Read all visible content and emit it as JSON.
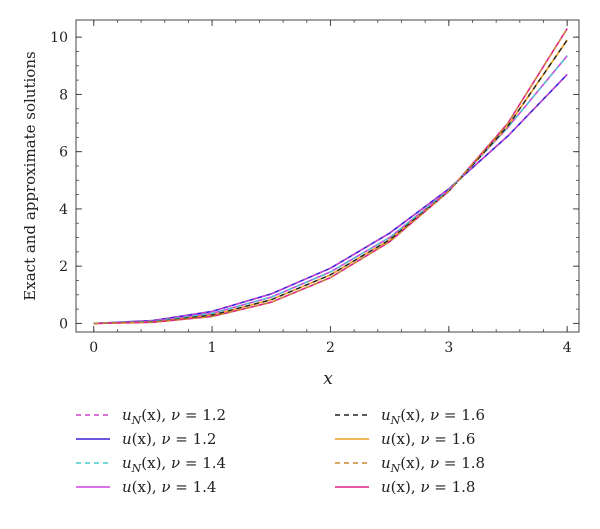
{
  "chart_data": {
    "type": "line",
    "xlabel": "x",
    "ylabel": "Exact and approximate solutions",
    "xlim": [
      -0.15,
      4.1
    ],
    "ylim": [
      -0.3,
      10.6
    ],
    "x_ticks": [
      {
        "value": 0,
        "label": "0"
      },
      {
        "value": 1,
        "label": "1"
      },
      {
        "value": 2,
        "label": "2"
      },
      {
        "value": 3,
        "label": "3"
      },
      {
        "value": 4,
        "label": "4"
      }
    ],
    "y_ticks": [
      {
        "value": 0,
        "label": "0"
      },
      {
        "value": 2,
        "label": "2"
      },
      {
        "value": 4,
        "label": "4"
      },
      {
        "value": 6,
        "label": "6"
      },
      {
        "value": 8,
        "label": "8"
      },
      {
        "value": 10,
        "label": "10"
      }
    ],
    "x": [
      0,
      0.5,
      1,
      1.5,
      2,
      2.5,
      3,
      3.5,
      4
    ],
    "series": [
      {
        "name": "u_N(x), ν = 1.2",
        "color": "#cc44cc",
        "dash": true,
        "values": [
          0,
          0.1,
          0.42,
          1.03,
          1.93,
          3.15,
          4.7,
          6.55,
          8.7
        ]
      },
      {
        "name": "u(x), ν = 1.2",
        "color": "#3b1fd6",
        "dash": false,
        "values": [
          0,
          0.1,
          0.42,
          1.03,
          1.93,
          3.15,
          4.7,
          6.55,
          8.7
        ]
      },
      {
        "name": "u_N(x), ν = 1.4",
        "color": "#44cccc",
        "dash": true,
        "values": [
          0,
          0.07,
          0.35,
          0.92,
          1.8,
          3.0,
          4.65,
          6.85,
          9.35
        ]
      },
      {
        "name": "u(x), ν = 1.4",
        "color": "#cc44dd",
        "dash": false,
        "values": [
          0,
          0.07,
          0.35,
          0.92,
          1.8,
          3.0,
          4.65,
          6.85,
          9.35
        ]
      },
      {
        "name": "u_N(x), ν = 1.6",
        "color": "#222222",
        "dash": true,
        "values": [
          0,
          0.05,
          0.29,
          0.83,
          1.7,
          2.92,
          4.62,
          6.9,
          9.9
        ]
      },
      {
        "name": "u(x), ν = 1.6",
        "color": "#e6a020",
        "dash": false,
        "values": [
          0,
          0.05,
          0.29,
          0.83,
          1.7,
          2.92,
          4.62,
          6.9,
          9.9
        ]
      },
      {
        "name": "u_N(x), ν = 1.8",
        "color": "#cc8a30",
        "dash": true,
        "values": [
          0,
          0.04,
          0.24,
          0.74,
          1.6,
          2.85,
          4.62,
          7.0,
          10.3
        ]
      },
      {
        "name": "u(x), ν = 1.8",
        "color": "#e0208a",
        "dash": false,
        "values": [
          0,
          0.04,
          0.24,
          0.74,
          1.6,
          2.85,
          4.62,
          7.0,
          10.3
        ]
      }
    ],
    "legend": {
      "position": "bottom",
      "items": [
        {
          "func": "u",
          "sub": "N",
          "arg": "(x), ",
          "nu": "ν",
          "eq": " = 1.2",
          "color": "#cc44cc",
          "dash": true
        },
        {
          "func": "u",
          "sub": "",
          "arg": "(x), ",
          "nu": "ν",
          "eq": " = 1.2",
          "color": "#3b1fd6",
          "dash": false
        },
        {
          "func": "u",
          "sub": "N",
          "arg": "(x), ",
          "nu": "ν",
          "eq": " = 1.4",
          "color": "#44cccc",
          "dash": true
        },
        {
          "func": "u",
          "sub": "",
          "arg": "(x), ",
          "nu": "ν",
          "eq": " = 1.4",
          "color": "#cc44dd",
          "dash": false
        },
        {
          "func": "u",
          "sub": "N",
          "arg": "(x), ",
          "nu": "ν",
          "eq": " = 1.6",
          "color": "#222222",
          "dash": true
        },
        {
          "func": "u",
          "sub": "",
          "arg": "(x), ",
          "nu": "ν",
          "eq": " = 1.6",
          "color": "#e6a020",
          "dash": false
        },
        {
          "func": "u",
          "sub": "N",
          "arg": "(x), ",
          "nu": "ν",
          "eq": " = 1.8",
          "color": "#cc8a30",
          "dash": true
        },
        {
          "func": "u",
          "sub": "",
          "arg": "(x), ",
          "nu": "ν",
          "eq": " = 1.8",
          "color": "#e0208a",
          "dash": false
        }
      ]
    },
    "grid": false
  }
}
